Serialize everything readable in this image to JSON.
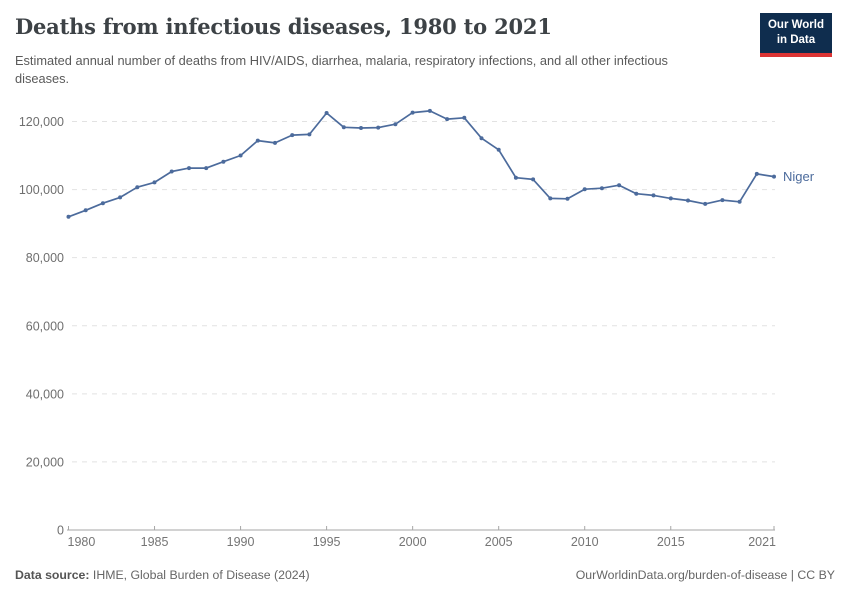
{
  "header": {
    "title": "Deaths from infectious diseases, 1980 to 2021",
    "subtitle": "Estimated annual number of deaths from HIV/AIDS, diarrhea, malaria, respiratory infections, and all other infectious diseases.",
    "logo": {
      "line1": "Our World",
      "line2": "in Data",
      "bg_color": "#0f2d4e",
      "accent_color": "#dc3434"
    }
  },
  "chart_data": {
    "type": "line",
    "title": "Deaths from infectious diseases, 1980 to 2021",
    "xlabel": "",
    "ylabel": "",
    "xlim": [
      1980,
      2021
    ],
    "ylim": [
      0,
      120000
    ],
    "grid": "horizontal-dashed",
    "legend": "end-of-line-label",
    "xticks": [
      1980,
      1985,
      1990,
      1995,
      2000,
      2005,
      2010,
      2015,
      2021
    ],
    "yticks": [
      0,
      20000,
      40000,
      60000,
      80000,
      100000,
      120000
    ],
    "x": [
      1980,
      1981,
      1982,
      1983,
      1984,
      1985,
      1986,
      1987,
      1988,
      1989,
      1990,
      1991,
      1992,
      1993,
      1994,
      1995,
      1996,
      1997,
      1998,
      1999,
      2000,
      2001,
      2002,
      2003,
      2004,
      2005,
      2006,
      2007,
      2008,
      2009,
      2010,
      2011,
      2012,
      2013,
      2014,
      2015,
      2016,
      2017,
      2018,
      2019,
      2020,
      2021
    ],
    "series": [
      {
        "name": "Niger",
        "color": "#4C6B9C",
        "values": [
          92000,
          93900,
          96000,
          97700,
          100700,
          102100,
          105300,
          106300,
          106300,
          108200,
          110000,
          114400,
          113700,
          116000,
          116200,
          122500,
          118300,
          118100,
          118200,
          119200,
          122600,
          123100,
          120700,
          121100,
          115100,
          111700,
          103500,
          103000,
          97400,
          97300,
          100100,
          100400,
          101300,
          98800,
          98300,
          97400,
          96800,
          95800,
          96900,
          96400,
          104600,
          103800
        ]
      }
    ],
    "colors": {
      "axis": "#a6a6a6",
      "grid": "#e2e2e2",
      "ytick": "#6f6f6f",
      "xtick": "#757575"
    }
  },
  "footer": {
    "source_label": "Data source:",
    "source_value": " IHME, Global Burden of Disease (2024)",
    "url_text": "OurWorldinData.org/burden-of-disease",
    "license_text": " | CC BY"
  }
}
